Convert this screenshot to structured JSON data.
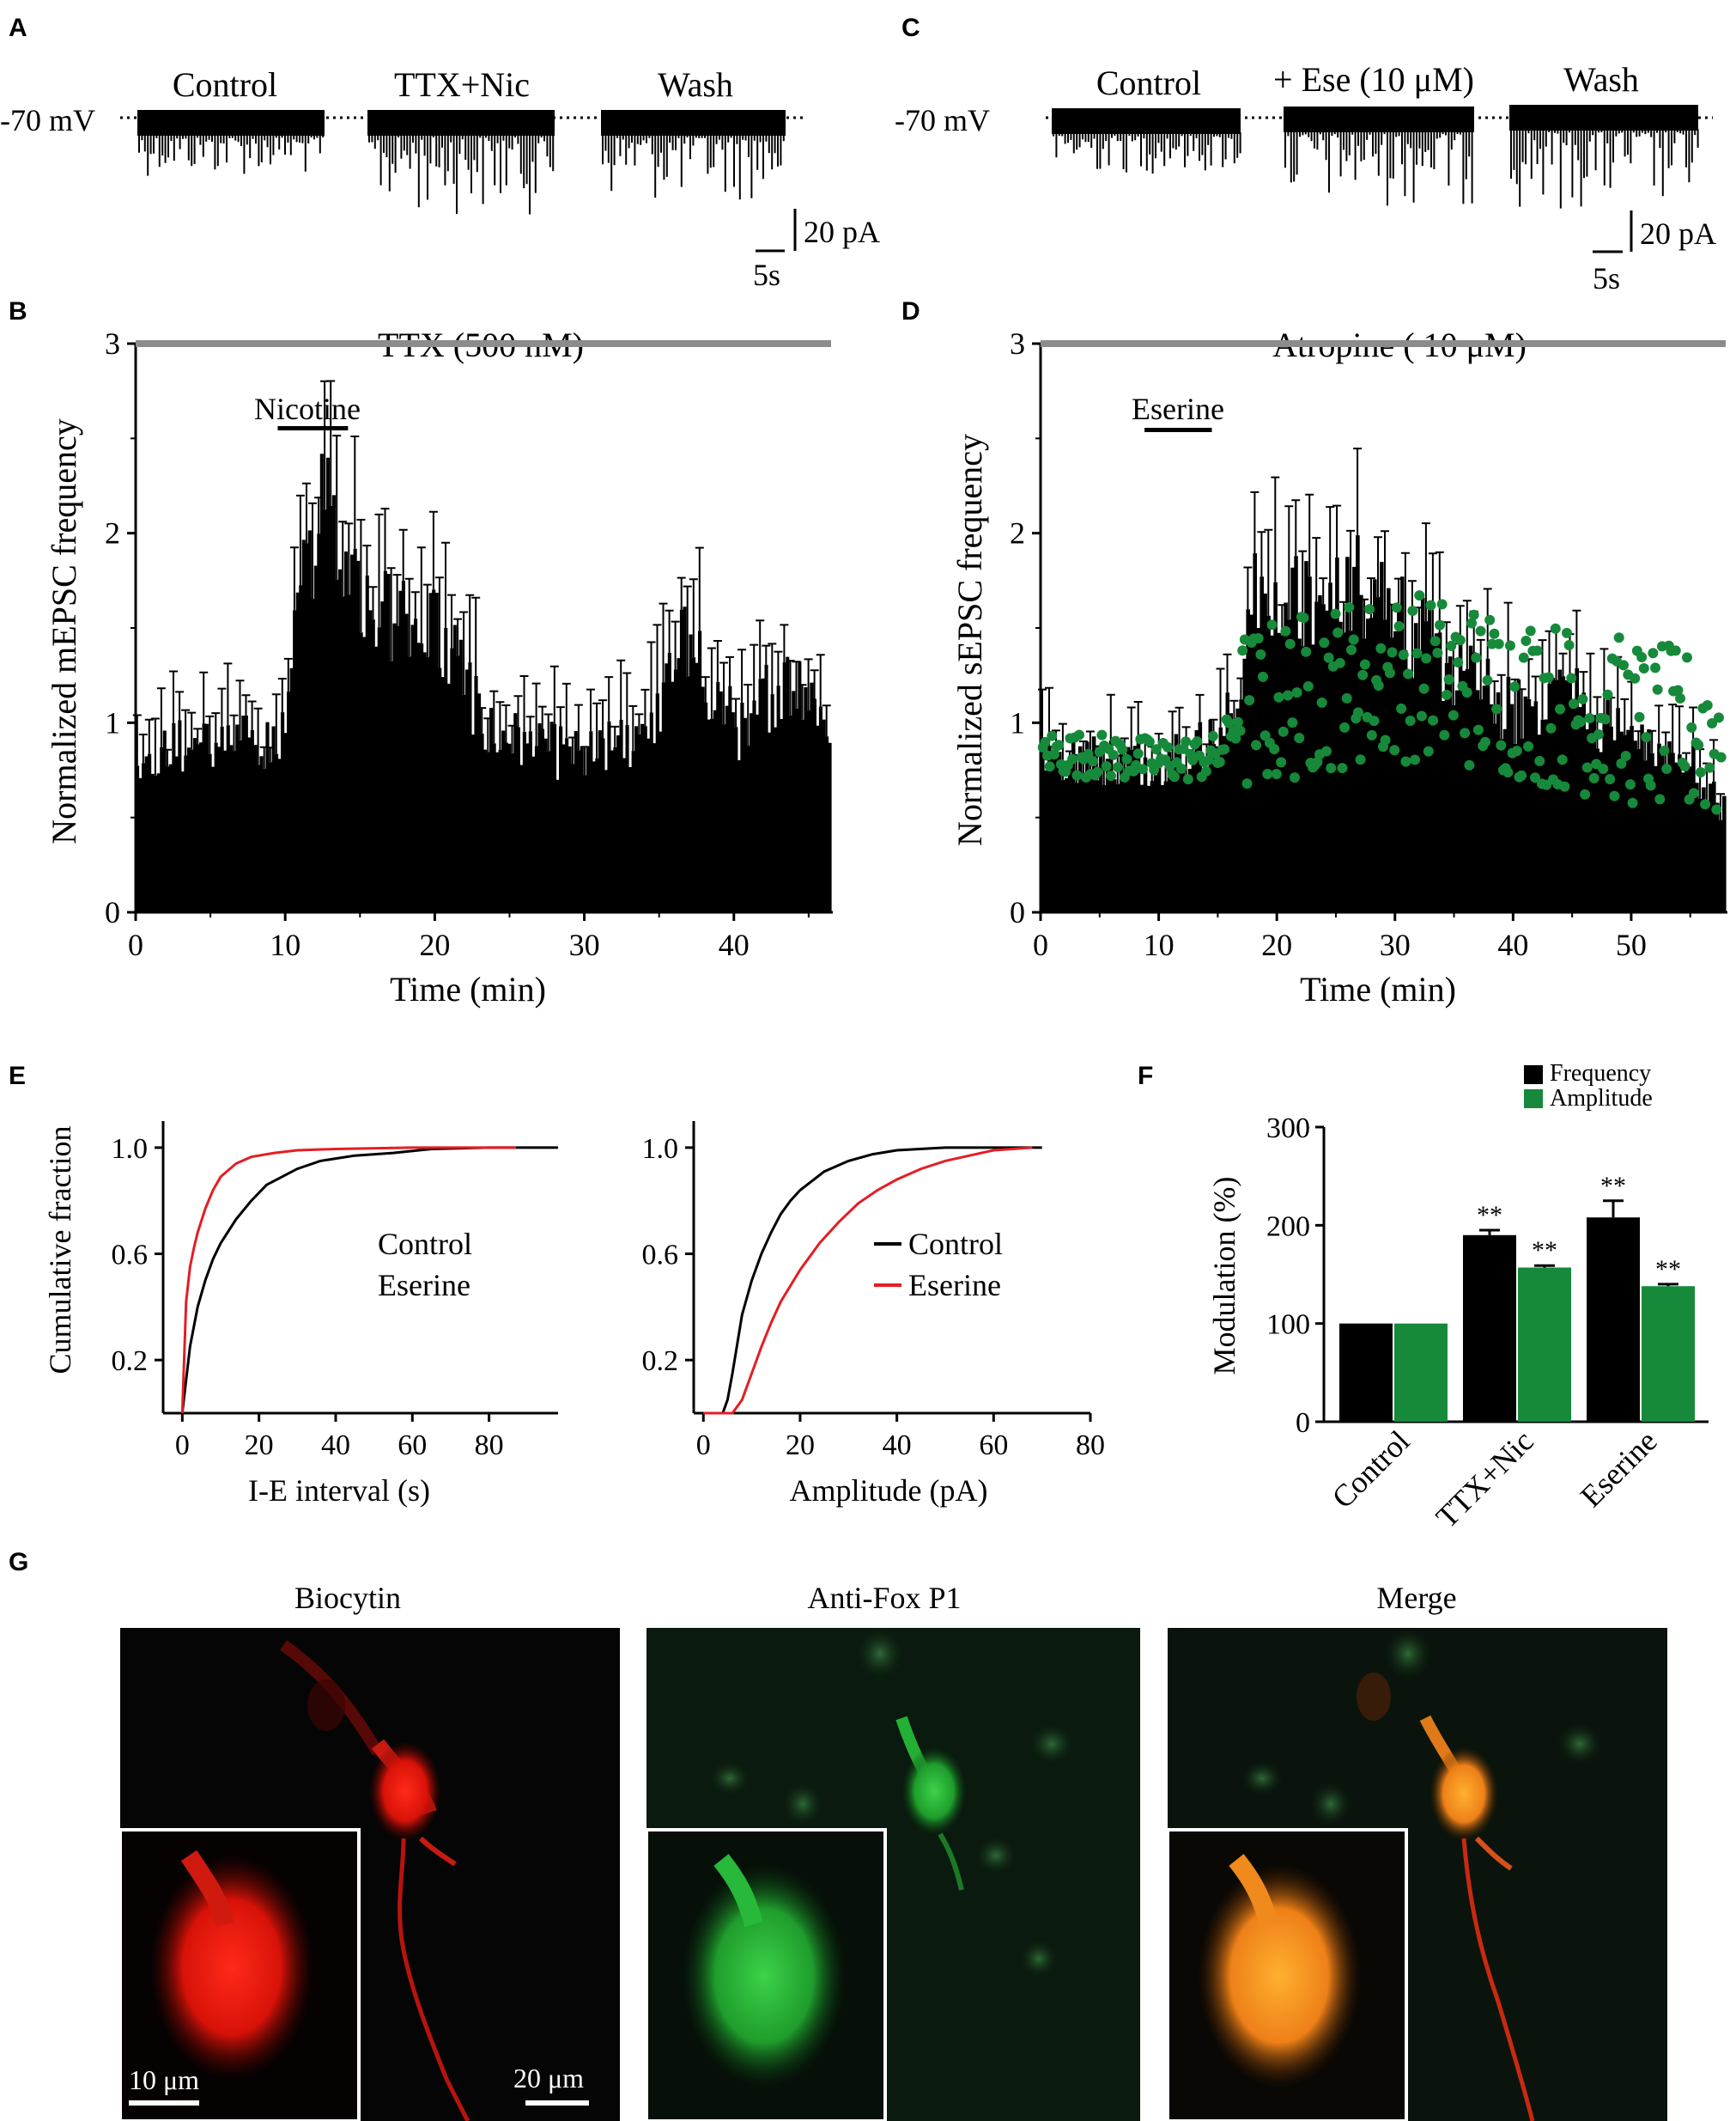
{
  "panels": {
    "A": {
      "label": "A",
      "holding": "-70 mV",
      "conditions": [
        "Control",
        "TTX+Nic",
        "Wash"
      ],
      "scale": {
        "current": "20 pA",
        "time": "5s"
      }
    },
    "B": {
      "label": "B",
      "bar_label": "TTX (500 nM)",
      "drug_label": "Nicotine",
      "ylabel": "Normalized mEPSC frequency",
      "xlabel": "Time (min)",
      "xticks": [
        "0",
        "10",
        "20",
        "30",
        "40"
      ],
      "yticks": [
        "0",
        "1",
        "2",
        "3"
      ]
    },
    "C": {
      "label": "C",
      "holding": "-70 mV",
      "conditions": [
        "Control",
        "+ Ese (10 μM)",
        "Wash"
      ],
      "scale": {
        "current": "20 pA",
        "time": "5s"
      }
    },
    "D": {
      "label": "D",
      "bar_label": "Atropine ( 10 μM)",
      "drug_label": "Eserine",
      "ylabel": "Normalized sEPSC frequency",
      "xlabel": "Time (min)",
      "xticks": [
        "0",
        "10",
        "20",
        "30",
        "40",
        "50"
      ],
      "yticks": [
        "0",
        "1",
        "2",
        "3"
      ]
    },
    "E": {
      "label": "E",
      "left": {
        "ylabel": "Cumulative fraction",
        "xlabel": "I-E interval (s)",
        "xticks": [
          "0",
          "20",
          "40",
          "60",
          "80"
        ],
        "yticks": [
          "0.2",
          "0.6",
          "1.0"
        ],
        "legend": [
          "Control",
          "Eserine"
        ]
      },
      "right": {
        "xlabel": "Amplitude (pA)",
        "xticks": [
          "0",
          "20",
          "40",
          "60",
          "80"
        ],
        "yticks": [
          "0.2",
          "0.6",
          "1.0"
        ],
        "legend": [
          "Control",
          "Eserine"
        ]
      }
    },
    "F": {
      "label": "F",
      "ylabel": "Modulation (%)",
      "yticks": [
        "0",
        "100",
        "200",
        "300"
      ],
      "categories": [
        "Control",
        "TTX+Nic",
        "Eserine"
      ],
      "legend": [
        "Frequency",
        "Amplitude"
      ],
      "sig": "**"
    },
    "G": {
      "label": "G",
      "titles": [
        "Biocytin",
        "Anti-Fox P1",
        "Merge"
      ],
      "inset_scale": "10 μm",
      "main_scale": "20 μm"
    }
  },
  "colors": {
    "black": "#000000",
    "red": "#e31e24",
    "green": "#168a3a",
    "gray": "#8c8c8c",
    "orange": "#f08a1c"
  },
  "chart_data": [
    {
      "id": "B",
      "type": "bar",
      "title": "TTX (500 nM)",
      "xlabel": "Time (min)",
      "ylabel": "Normalized mEPSC frequency",
      "xlim": [
        0,
        46.5
      ],
      "ylim": [
        0,
        3
      ],
      "drug_interval": [
        9.5,
        14.2
      ],
      "bar_interval": [
        0,
        46.5
      ],
      "profile": [
        [
          0,
          0.9
        ],
        [
          9.8,
          0.95
        ],
        [
          10.6,
          1.55
        ],
        [
          12,
          2.1
        ],
        [
          13,
          2.3
        ],
        [
          14.5,
          2.0
        ],
        [
          16,
          1.7
        ],
        [
          18,
          1.6
        ],
        [
          20,
          1.6
        ],
        [
          22,
          1.3
        ],
        [
          23.5,
          1.0
        ],
        [
          30,
          0.85
        ],
        [
          33,
          0.95
        ],
        [
          35,
          1.15
        ],
        [
          36.5,
          1.5
        ],
        [
          38,
          1.3
        ],
        [
          40,
          1.05
        ],
        [
          41,
          0.95
        ],
        [
          42,
          1.2
        ],
        [
          44.5,
          1.3
        ],
        [
          46.5,
          1.0
        ]
      ]
    },
    {
      "id": "D",
      "type": "bar",
      "title": "Atropine ( 10 μM)",
      "xlabel": "Time (min)",
      "ylabel": "Normalized sEPSC frequency",
      "xlim": [
        0,
        58
      ],
      "ylim": [
        0,
        3
      ],
      "drug_interval": [
        8.8,
        14.5
      ],
      "bar_interval": [
        0,
        58
      ],
      "profile": [
        [
          0,
          0.9
        ],
        [
          5,
          0.85
        ],
        [
          10,
          0.85
        ],
        [
          15,
          0.95
        ],
        [
          17,
          1.2
        ],
        [
          18,
          1.7
        ],
        [
          21,
          1.75
        ],
        [
          24,
          1.6
        ],
        [
          26,
          1.8
        ],
        [
          28,
          1.85
        ],
        [
          30,
          1.7
        ],
        [
          32,
          1.5
        ],
        [
          35,
          1.35
        ],
        [
          38,
          1.2
        ],
        [
          40,
          1.1
        ],
        [
          44,
          1.25
        ],
        [
          48,
          1.05
        ],
        [
          52,
          0.85
        ],
        [
          55,
          0.85
        ],
        [
          58,
          0.55
        ]
      ],
      "scatter_series": {
        "name": "green points",
        "profile": [
          [
            0,
            0.85
          ],
          [
            10,
            0.8
          ],
          [
            15,
            0.82
          ],
          [
            17,
            1.05
          ],
          [
            25,
            1.2
          ],
          [
            32,
            1.25
          ],
          [
            40,
            1.15
          ],
          [
            50,
            1.0
          ],
          [
            58,
            0.9
          ]
        ]
      }
    },
    {
      "id": "E-left",
      "type": "line",
      "xlabel": "I-E interval (s)",
      "ylabel": "Cumulative fraction",
      "xlim": [
        -5,
        98
      ],
      "ylim": [
        0,
        1.1
      ],
      "series": [
        {
          "name": "Control",
          "color": "#000000",
          "x": [
            0,
            2,
            4,
            6,
            8,
            10,
            14,
            18,
            22,
            26,
            30,
            36,
            45,
            55,
            65,
            80,
            98
          ],
          "y": [
            0,
            0.25,
            0.4,
            0.5,
            0.58,
            0.64,
            0.73,
            0.8,
            0.86,
            0.89,
            0.92,
            0.95,
            0.97,
            0.98,
            0.995,
            1.0,
            1.0
          ]
        },
        {
          "name": "Eserine",
          "color": "#e31e24",
          "x": [
            0,
            1,
            2,
            3,
            4,
            6,
            8,
            10,
            14,
            18,
            24,
            30,
            40,
            60,
            87
          ],
          "y": [
            0,
            0.42,
            0.55,
            0.62,
            0.68,
            0.77,
            0.84,
            0.89,
            0.94,
            0.965,
            0.98,
            0.99,
            0.995,
            1.0,
            1.0
          ]
        }
      ]
    },
    {
      "id": "E-right",
      "type": "line",
      "xlabel": "Amplitude (pA)",
      "xlim": [
        -2,
        80
      ],
      "ylim": [
        0,
        1.1
      ],
      "series": [
        {
          "name": "Control",
          "color": "#000000",
          "x": [
            0,
            4,
            5,
            6,
            7,
            8,
            10,
            12,
            14,
            16,
            18,
            20,
            25,
            30,
            35,
            40,
            50,
            60,
            70
          ],
          "y": [
            0,
            0,
            0.05,
            0.15,
            0.26,
            0.37,
            0.5,
            0.6,
            0.68,
            0.75,
            0.8,
            0.84,
            0.91,
            0.95,
            0.975,
            0.99,
            1.0,
            1.0,
            1.0
          ]
        },
        {
          "name": "Eserine",
          "color": "#e31e24",
          "x": [
            0,
            6,
            8,
            10,
            12,
            14,
            16,
            18,
            20,
            24,
            28,
            32,
            36,
            40,
            45,
            50,
            55,
            60,
            68
          ],
          "y": [
            0,
            0,
            0.05,
            0.15,
            0.25,
            0.34,
            0.42,
            0.48,
            0.54,
            0.64,
            0.72,
            0.79,
            0.84,
            0.88,
            0.92,
            0.95,
            0.97,
            0.99,
            1.0
          ]
        }
      ]
    },
    {
      "id": "F",
      "type": "bar",
      "ylabel": "Modulation (%)",
      "ylim": [
        0,
        300
      ],
      "categories": [
        "Control",
        "TTX+Nic",
        "Eserine"
      ],
      "series": [
        {
          "name": "Frequency",
          "color": "#000000",
          "values": [
            100,
            190,
            208
          ],
          "errors": [
            0,
            5,
            17
          ]
        },
        {
          "name": "Amplitude",
          "color": "#168a3a",
          "values": [
            100,
            157,
            138
          ],
          "errors": [
            0,
            2,
            2
          ]
        }
      ]
    }
  ]
}
